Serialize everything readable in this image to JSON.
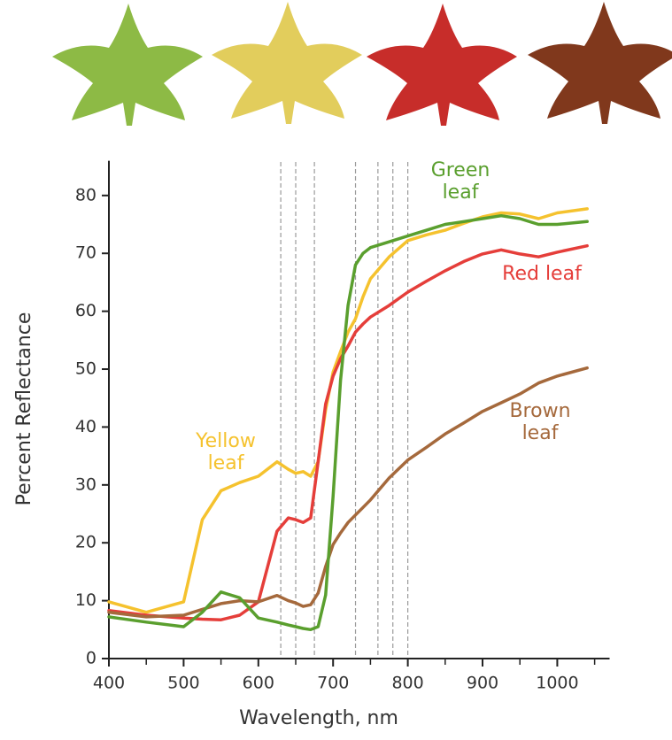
{
  "chart_data": {
    "type": "line",
    "x_label": "Wavelength, nm",
    "y_label": "Percent Reflectance",
    "x": [
      400,
      450,
      500,
      525,
      550,
      575,
      600,
      625,
      640,
      650,
      660,
      670,
      680,
      690,
      700,
      710,
      720,
      730,
      740,
      750,
      775,
      800,
      825,
      850,
      875,
      900,
      925,
      950,
      975,
      1000,
      1040
    ],
    "series": [
      {
        "name": "Yellow leaf",
        "color": "#f5c22e",
        "values": [
          9.8,
          8,
          9.8,
          24,
          29,
          30.4,
          31.5,
          34,
          32.7,
          32,
          32.3,
          31.5,
          34,
          43,
          49.5,
          53,
          56.4,
          58.7,
          62.5,
          65.6,
          69.4,
          72.2,
          73.2,
          74,
          75.2,
          76.3,
          77,
          76.8,
          76,
          77,
          77.7
        ]
      },
      {
        "name": "Red leaf",
        "color": "#e53e3a",
        "values": [
          8.3,
          7.5,
          7,
          6.8,
          6.7,
          7.5,
          9.8,
          22,
          24.3,
          24,
          23.5,
          24.3,
          34,
          44,
          48.8,
          51.8,
          54,
          56.4,
          57.8,
          59,
          61,
          63.3,
          65.2,
          67,
          68.6,
          69.9,
          70.6,
          69.9,
          69.4,
          70.2,
          71.3
        ]
      },
      {
        "name": "Brown leaf",
        "color": "#a5693c",
        "values": [
          8,
          7.2,
          7.5,
          8.5,
          9.5,
          10,
          9.8,
          10.9,
          10,
          9.6,
          9,
          9.3,
          11.3,
          15.9,
          19.7,
          21.7,
          23.5,
          24.8,
          26.1,
          27.4,
          31.2,
          34.3,
          36.5,
          38.8,
          40.7,
          42.7,
          44.2,
          45.7,
          47.6,
          48.8,
          50.2
        ]
      },
      {
        "name": "Green leaf",
        "color": "#5a9f2e",
        "values": [
          7.2,
          6.3,
          5.5,
          8,
          11.5,
          10.5,
          7,
          6.3,
          5.8,
          5.5,
          5.2,
          5,
          5.5,
          11,
          28,
          48,
          61,
          68,
          70,
          71,
          72,
          73,
          74,
          75,
          75.5,
          76,
          76.5,
          76,
          75,
          75,
          75.5
        ]
      }
    ],
    "xlim": [
      400,
      1070
    ],
    "ylim": [
      0,
      86
    ],
    "xticks": [
      400,
      500,
      600,
      700,
      800,
      900,
      1000
    ],
    "xminor_ticks": [
      450,
      550,
      650,
      750,
      850,
      950,
      1050
    ],
    "yticks": [
      0,
      10,
      20,
      30,
      40,
      50,
      60,
      70,
      80
    ],
    "reference_lines_x": [
      630,
      650,
      675,
      730,
      760,
      780,
      800
    ]
  }
}
